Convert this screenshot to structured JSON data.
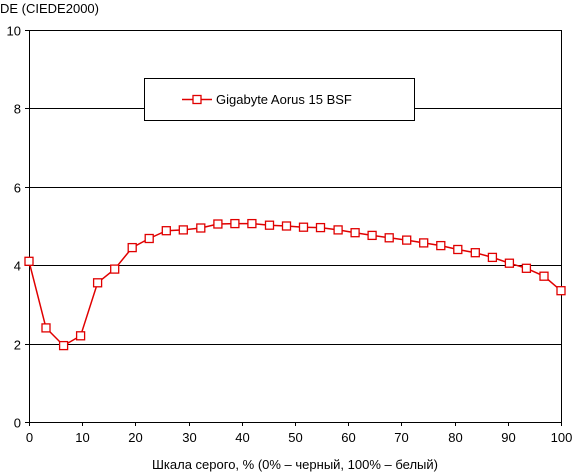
{
  "chart_data": {
    "type": "line",
    "title": "",
    "ylabel": "DE (CIEDE2000)",
    "xlabel": "Шкала серого, % (0% – черный, 100% – белый)",
    "xlim": [
      0,
      100
    ],
    "ylim": [
      0,
      10
    ],
    "x_ticks": [
      0,
      10,
      20,
      30,
      40,
      50,
      60,
      70,
      80,
      90,
      100
    ],
    "y_ticks": [
      0,
      2,
      4,
      6,
      8,
      10
    ],
    "grid": "horizontal",
    "legend_position": "top-center",
    "series": [
      {
        "name": "Gigabyte Aorus 15 BSF",
        "color": "#e00000",
        "marker": "square",
        "x": [
          0,
          3.2,
          6.5,
          9.7,
          12.9,
          16.1,
          19.4,
          22.6,
          25.8,
          29.0,
          32.3,
          35.5,
          38.7,
          41.9,
          45.2,
          48.4,
          51.6,
          54.8,
          58.1,
          61.3,
          64.5,
          67.7,
          71.0,
          74.2,
          77.4,
          80.6,
          83.9,
          87.1,
          90.3,
          93.5,
          96.8,
          100
        ],
        "y": [
          4.1,
          2.4,
          1.95,
          2.2,
          3.55,
          3.9,
          4.45,
          4.68,
          4.88,
          4.9,
          4.95,
          5.05,
          5.06,
          5.06,
          5.02,
          5.0,
          4.97,
          4.96,
          4.9,
          4.83,
          4.76,
          4.7,
          4.64,
          4.57,
          4.5,
          4.4,
          4.32,
          4.2,
          4.05,
          3.92,
          3.72,
          3.35
        ]
      }
    ]
  }
}
